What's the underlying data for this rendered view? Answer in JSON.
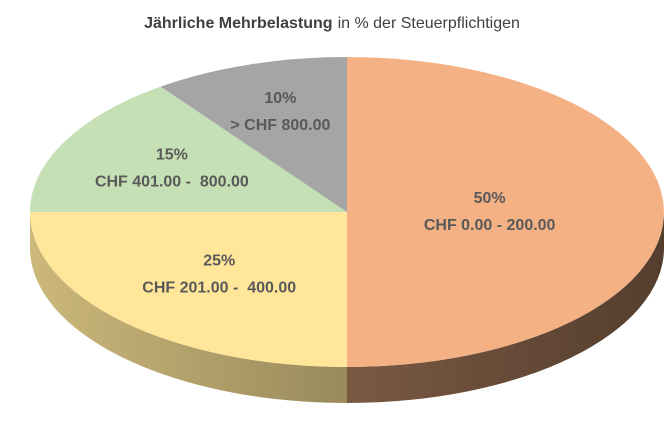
{
  "chart_data": {
    "type": "pie3d",
    "title": [
      "Jährliche Mehrbelastung",
      "in % der Steuerpflichtigen"
    ],
    "categories": [
      "CHF 0.00 - 200.00",
      "CHF 201.00 -  400.00",
      "CHF 401.00 -  800.00",
      "> CHF 800.00"
    ],
    "values": [
      50,
      25,
      15,
      10
    ],
    "value_labels": [
      "50%",
      "25%",
      "15%",
      "10%"
    ],
    "colors": [
      "#f4b183",
      "#ffe699",
      "#c5e0b4",
      "#a5a5a5"
    ]
  }
}
